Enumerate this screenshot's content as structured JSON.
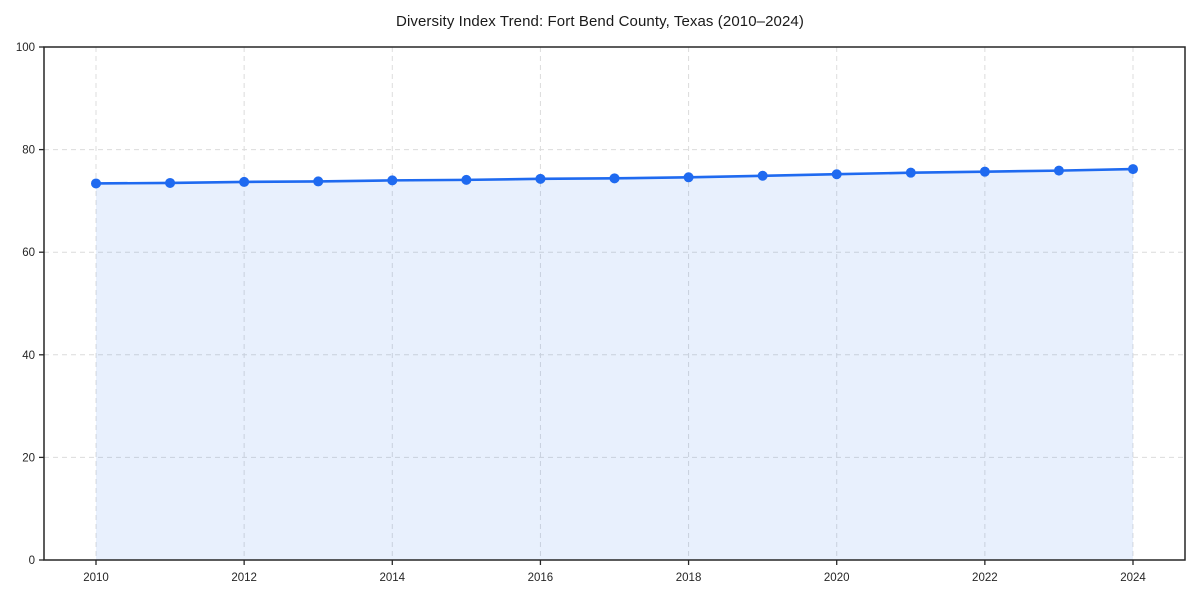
{
  "chart_data": {
    "type": "line",
    "title": "Diversity Index Trend: Fort Bend County, Texas (2010–2024)",
    "x": [
      2010,
      2011,
      2012,
      2013,
      2014,
      2015,
      2016,
      2017,
      2018,
      2019,
      2020,
      2021,
      2022,
      2023,
      2024
    ],
    "values": [
      73.4,
      73.5,
      73.7,
      73.8,
      74.0,
      74.1,
      74.3,
      74.4,
      74.6,
      74.9,
      75.2,
      75.5,
      75.7,
      75.9,
      76.2
    ],
    "xlabel": "",
    "ylabel": "",
    "ylim": [
      0,
      100
    ],
    "yticks": [
      0,
      20,
      40,
      60,
      80,
      100
    ],
    "xtick_labels": [
      "2010",
      "2012",
      "2014",
      "2016",
      "2018",
      "2020",
      "2022",
      "2024"
    ],
    "xticks": [
      2010,
      2012,
      2014,
      2016,
      2018,
      2020,
      2022,
      2024
    ],
    "grid": true,
    "grid_style": "dashed",
    "legend": "none",
    "marker": "circle",
    "area_fill": true,
    "colors": {
      "line": "#1f6af0",
      "marker": "#1f6af0",
      "area_fill": "rgba(31,106,240,0.10)",
      "grid": "#dcdcdc",
      "spine": "#262626",
      "tick_label": "#262626",
      "title": "#1a1a1a",
      "background": "#ffffff"
    }
  }
}
